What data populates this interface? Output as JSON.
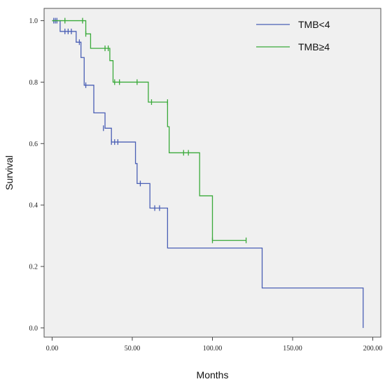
{
  "chart_data": {
    "type": "line",
    "title": "",
    "xlabel": "Months",
    "ylabel": "Survival",
    "xlim": [
      -5,
      205
    ],
    "ylim": [
      -0.03,
      1.04
    ],
    "x_ticks": [
      0,
      50,
      100,
      150,
      200
    ],
    "x_tick_labels": [
      "0.00",
      "50.00",
      "100.00",
      "150.00",
      "200.00"
    ],
    "y_ticks": [
      0.0,
      0.2,
      0.4,
      0.6,
      0.8,
      1.0
    ],
    "y_tick_labels": [
      "0.0",
      "0.2",
      "0.4",
      "0.6",
      "0.8",
      "1.0"
    ],
    "grid": false,
    "legend_position": "top-right",
    "plot_background": "#f0f0f0",
    "series": [
      {
        "name": "TMB<4",
        "color": "#4a5fb5",
        "steps": [
          [
            0,
            1.0
          ],
          [
            5,
            0.965
          ],
          [
            15,
            0.93
          ],
          [
            18,
            0.88
          ],
          [
            20,
            0.79
          ],
          [
            26,
            0.7
          ],
          [
            33,
            0.65
          ],
          [
            37,
            0.605
          ],
          [
            52,
            0.535
          ],
          [
            53,
            0.47
          ],
          [
            61,
            0.39
          ],
          [
            72,
            0.26
          ],
          [
            131,
            0.13
          ],
          [
            194,
            0.0
          ]
        ],
        "censored": [
          [
            1,
            1.0
          ],
          [
            2,
            1.0
          ],
          [
            3,
            1.0
          ],
          [
            8,
            0.965
          ],
          [
            10,
            0.965
          ],
          [
            12,
            0.965
          ],
          [
            17,
            0.93
          ],
          [
            21,
            0.79
          ],
          [
            32,
            0.65
          ],
          [
            37,
            0.605
          ],
          [
            39,
            0.605
          ],
          [
            41,
            0.605
          ],
          [
            55,
            0.47
          ],
          [
            64,
            0.39
          ],
          [
            67,
            0.39
          ]
        ]
      },
      {
        "name": "TMB≥4",
        "color": "#3aaa3a",
        "steps": [
          [
            0,
            1.0
          ],
          [
            21,
            0.957
          ],
          [
            24,
            0.91
          ],
          [
            36,
            0.87
          ],
          [
            38,
            0.8
          ],
          [
            60,
            0.735
          ],
          [
            72,
            0.655
          ],
          [
            73,
            0.57
          ],
          [
            92,
            0.43
          ],
          [
            100,
            0.285
          ],
          [
            121,
            0.285
          ]
        ],
        "censored": [
          [
            8,
            1.0
          ],
          [
            19,
            1.0
          ],
          [
            21,
            0.957
          ],
          [
            33,
            0.91
          ],
          [
            35,
            0.91
          ],
          [
            39,
            0.8
          ],
          [
            42,
            0.8
          ],
          [
            53,
            0.8
          ],
          [
            62,
            0.735
          ],
          [
            72,
            0.735
          ],
          [
            82,
            0.57
          ],
          [
            85,
            0.57
          ],
          [
            100,
            0.285
          ],
          [
            121,
            0.285
          ]
        ]
      }
    ]
  }
}
